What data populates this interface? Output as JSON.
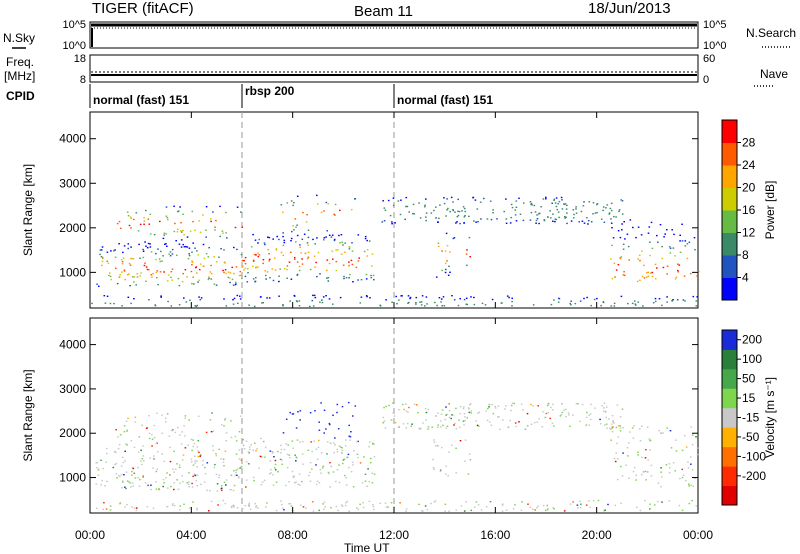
{
  "header": {
    "radar": "TIGER (fitACF)",
    "beam": "Beam 11",
    "date": "18/Jun/2013"
  },
  "summary": {
    "nsky_label": "N.Sky",
    "nsearch_label": "N.Search",
    "freq_label_1": "Freq.",
    "freq_label_2": "[MHz]",
    "nave_label": "Nave",
    "cpid_label": "CPID",
    "nsky_ticks_left": [
      "10^5",
      "10^0"
    ],
    "nsky_ticks_right": [
      "10^5",
      "10^0"
    ],
    "freq_ticks_left": [
      "18",
      "8"
    ],
    "freq_ticks_right": [
      "60",
      "0"
    ]
  },
  "chart_data": [
    {
      "type": "heatmap",
      "parameter": "Power",
      "ylabel": "Slant Range [km]",
      "xlabel": "Time UT",
      "xticks": [
        "00:00",
        "04:00",
        "08:00",
        "12:00",
        "16:00",
        "20:00",
        "00:00"
      ],
      "yticks": [
        "1000",
        "2000",
        "3000",
        "4000"
      ],
      "ylim": [
        200,
        4600
      ],
      "xlim_hours": [
        0,
        24
      ],
      "colorbar": {
        "label": "Power [dB]",
        "ticks": [
          "4",
          "8",
          "12",
          "16",
          "20",
          "24",
          "28"
        ],
        "colors": [
          "#0000ff",
          "#2055c0",
          "#3a8a6a",
          "#66bb44",
          "#cccc00",
          "#ffa500",
          "#ff5a00",
          "#ff0000"
        ]
      },
      "cpid_modes": [
        {
          "label": "normal (fast) 151",
          "start": 0,
          "end": 6
        },
        {
          "label": "rbsp 200",
          "start": 6,
          "end": 12
        },
        {
          "label": "normal (fast) 151",
          "start": 12,
          "end": 24
        }
      ]
    },
    {
      "type": "heatmap",
      "parameter": "Velocity",
      "ylabel": "Slant Range [km]",
      "xlabel": "Time UT",
      "xticks": [
        "00:00",
        "04:00",
        "08:00",
        "12:00",
        "16:00",
        "20:00",
        "00:00"
      ],
      "yticks": [
        "1000",
        "2000",
        "3000",
        "4000"
      ],
      "ylim": [
        200,
        4600
      ],
      "xlim_hours": [
        0,
        24
      ],
      "colorbar": {
        "label": "Velocity [m s⁻¹]",
        "ticks": [
          "200",
          "100",
          "50",
          "15",
          "-15",
          "-50",
          "-100",
          "-200"
        ],
        "colors": [
          "#1a2bd8",
          "#2a7f3a",
          "#46a84a",
          "#7ed64c",
          "#c8c8c8",
          "#ffb000",
          "#ff7000",
          "#ff2a00",
          "#e00000"
        ]
      }
    }
  ]
}
